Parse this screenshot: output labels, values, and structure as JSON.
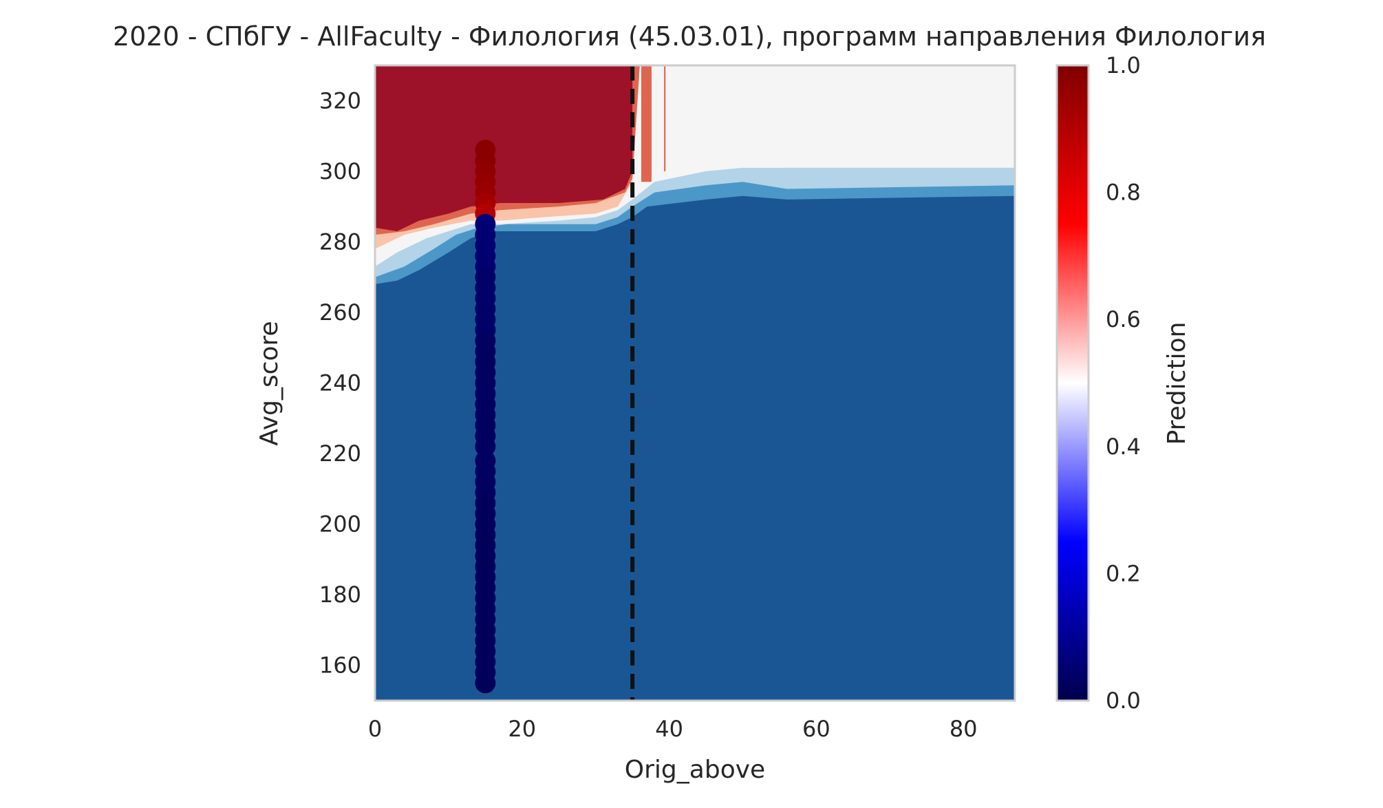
{
  "chart_data": {
    "type": "heatmap",
    "title": "2020 - СПбГУ - AllFaculty - Филология (45.03.01), программ направления Филология",
    "xlabel": "Orig_above",
    "ylabel": "Avg_score",
    "xlim": [
      0,
      87
    ],
    "ylim": [
      150,
      330
    ],
    "x_ticks": [
      0,
      20,
      40,
      60,
      80
    ],
    "y_ticks": [
      160,
      180,
      200,
      220,
      240,
      260,
      280,
      300,
      320
    ],
    "grid": false,
    "colorbar": {
      "label": "Prediction",
      "range": [
        0,
        1
      ],
      "ticks": [
        0.0,
        0.2,
        0.4,
        0.6,
        0.8,
        1.0
      ],
      "tick_labels": [
        "0.0",
        "0.2",
        "0.4",
        "0.6",
        "0.8",
        "1.0"
      ],
      "colormap": "seismic"
    },
    "threshold_line": {
      "x": 35,
      "style": "dashed",
      "color": "#111111"
    },
    "contour_levels": [
      {
        "level": 0.1,
        "color": "#1b5694"
      },
      {
        "level": 0.2,
        "color": "#4b97c8"
      },
      {
        "level": 0.3,
        "color": "#b2d3e8"
      },
      {
        "level": 0.45,
        "color": "#f5f5f5"
      },
      {
        "level": 0.6,
        "color": "#f9c4aa"
      },
      {
        "level": 0.75,
        "color": "#e0654e"
      },
      {
        "level": 0.9,
        "color": "#9d1228"
      }
    ],
    "scatter": {
      "x": 15,
      "points": [
        {
          "y": 306,
          "prediction": 0.98
        },
        {
          "y": 303,
          "prediction": 0.98
        },
        {
          "y": 300,
          "prediction": 0.97
        },
        {
          "y": 297,
          "prediction": 0.96
        },
        {
          "y": 294,
          "prediction": 0.95
        },
        {
          "y": 291,
          "prediction": 0.93
        },
        {
          "y": 288,
          "prediction": 0.9
        },
        {
          "y": 285,
          "prediction": 0.06
        },
        {
          "y": 282,
          "prediction": 0.05
        },
        {
          "y": 279,
          "prediction": 0.05
        },
        {
          "y": 276,
          "prediction": 0.05
        },
        {
          "y": 273,
          "prediction": 0.05
        },
        {
          "y": 270,
          "prediction": 0.04
        },
        {
          "y": 267,
          "prediction": 0.04
        },
        {
          "y": 264,
          "prediction": 0.04
        },
        {
          "y": 261,
          "prediction": 0.04
        },
        {
          "y": 258,
          "prediction": 0.04
        },
        {
          "y": 255,
          "prediction": 0.04
        },
        {
          "y": 252,
          "prediction": 0.03
        },
        {
          "y": 249,
          "prediction": 0.03
        },
        {
          "y": 246,
          "prediction": 0.03
        },
        {
          "y": 243,
          "prediction": 0.03
        },
        {
          "y": 240,
          "prediction": 0.03
        },
        {
          "y": 237,
          "prediction": 0.03
        },
        {
          "y": 234,
          "prediction": 0.03
        },
        {
          "y": 231,
          "prediction": 0.03
        },
        {
          "y": 228,
          "prediction": 0.03
        },
        {
          "y": 225,
          "prediction": 0.03
        },
        {
          "y": 222,
          "prediction": 0.03
        },
        {
          "y": 218,
          "prediction": 0.03
        },
        {
          "y": 215,
          "prediction": 0.03
        },
        {
          "y": 212,
          "prediction": 0.03
        },
        {
          "y": 209,
          "prediction": 0.03
        },
        {
          "y": 206,
          "prediction": 0.02
        },
        {
          "y": 203,
          "prediction": 0.02
        },
        {
          "y": 200,
          "prediction": 0.02
        },
        {
          "y": 197,
          "prediction": 0.02
        },
        {
          "y": 194,
          "prediction": 0.02
        },
        {
          "y": 191,
          "prediction": 0.02
        },
        {
          "y": 188,
          "prediction": 0.02
        },
        {
          "y": 185,
          "prediction": 0.02
        },
        {
          "y": 182,
          "prediction": 0.02
        },
        {
          "y": 179,
          "prediction": 0.02
        },
        {
          "y": 176,
          "prediction": 0.02
        },
        {
          "y": 173,
          "prediction": 0.02
        },
        {
          "y": 170,
          "prediction": 0.02
        },
        {
          "y": 167,
          "prediction": 0.02
        },
        {
          "y": 164,
          "prediction": 0.02
        },
        {
          "y": 161,
          "prediction": 0.02
        },
        {
          "y": 158,
          "prediction": 0.02
        },
        {
          "y": 155,
          "prediction": 0.02
        }
      ]
    }
  }
}
